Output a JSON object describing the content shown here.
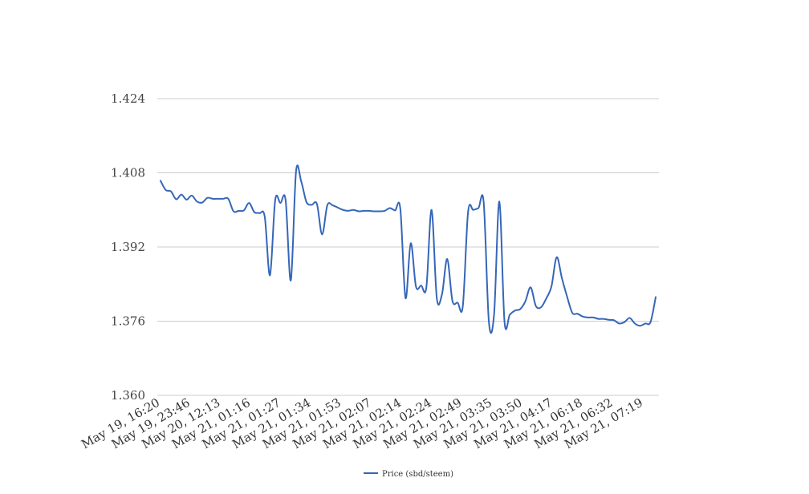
{
  "chart_data": {
    "type": "line",
    "title": "",
    "xlabel": "",
    "ylabel": "",
    "ylim": [
      1.36,
      1.424
    ],
    "y_ticks": [
      "1.424",
      "1.408",
      "1.392",
      "1.376",
      "1.360"
    ],
    "x_tick_labels": [
      "May 19, 16:20",
      "May 19, 23:46",
      "May 20, 12:13",
      "May 21, 01:16",
      "May 21, 01:27",
      "May 21, 01:34",
      "May 21, 01:53",
      "May 21, 02:07",
      "May 21, 02:14",
      "May 21, 02:24",
      "May 21, 02:49",
      "May 21, 03:35",
      "May 21, 03:50",
      "May 21, 04:17",
      "May 21, 06:18",
      "May 21, 06:32",
      "May 21, 07:19"
    ],
    "grid": true,
    "legend_position": "bottom-center",
    "series": [
      {
        "name": "Price (sbd/steem)",
        "color": "#3566b8",
        "values": [
          1.4063,
          1.4043,
          1.404,
          1.4023,
          1.4033,
          1.4022,
          1.4031,
          1.4018,
          1.4016,
          1.4026,
          1.4024,
          1.4024,
          1.4024,
          1.4024,
          1.3997,
          1.3998,
          1.3999,
          1.4015,
          1.3995,
          1.3993,
          1.3985,
          1.3859,
          1.4021,
          1.4015,
          1.4021,
          1.3848,
          1.4083,
          1.4061,
          1.4017,
          1.4011,
          1.4013,
          1.3947,
          1.401,
          1.401,
          1.4005,
          1.4,
          1.3998,
          1.4,
          1.3997,
          1.3998,
          1.3998,
          1.3997,
          1.3997,
          1.3998,
          1.4004,
          1.3999,
          1.4003,
          1.381,
          1.3928,
          1.3835,
          1.3837,
          1.3833,
          1.4,
          1.381,
          1.3818,
          1.3894,
          1.3804,
          1.38,
          1.3793,
          1.3995,
          1.4,
          1.4004,
          1.4016,
          1.3758,
          1.3776,
          1.4018,
          1.3758,
          1.3774,
          1.3783,
          1.3786,
          1.3803,
          1.3833,
          1.3793,
          1.379,
          1.3809,
          1.3835,
          1.3898,
          1.3853,
          1.3813,
          1.3778,
          1.3776,
          1.377,
          1.3768,
          1.3768,
          1.3765,
          1.3765,
          1.3763,
          1.3762,
          1.3755,
          1.3758,
          1.3767,
          1.3755,
          1.375,
          1.3755,
          1.3758,
          1.3812
        ]
      }
    ]
  }
}
